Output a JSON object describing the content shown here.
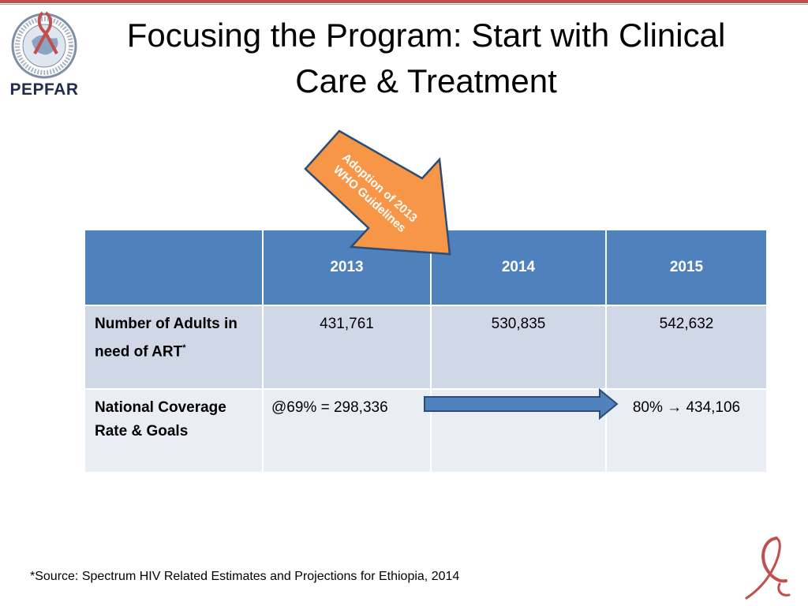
{
  "logo": {
    "text": "PEPFAR",
    "icon": "pepfar-seal-icon"
  },
  "title": "Focusing the Program: Start with Clinical Care & Treatment",
  "callout": {
    "line1": "Adoption of 2013",
    "line2": "WHO Guidelines"
  },
  "table": {
    "headers": [
      "",
      "2013",
      "2014",
      "2015"
    ],
    "rows": [
      {
        "label": "Number of Adults in need of ART",
        "label_sup": "*",
        "cells": [
          "431,761",
          "530,835",
          "542,632"
        ]
      },
      {
        "label": "National Coverage Rate & Goals",
        "cells": [
          "@69% = 298,336",
          "",
          "80% → 434,106"
        ]
      }
    ]
  },
  "footnote": "*Source:  Spectrum HIV Related Estimates and Projections for Ethiopia, 2014",
  "colors": {
    "header_blue": "#4f81bd",
    "row_dark": "#d0d8e8",
    "row_light": "#e9edf4",
    "callout_orange": "#f79646",
    "accent_red": "#c0504d"
  }
}
